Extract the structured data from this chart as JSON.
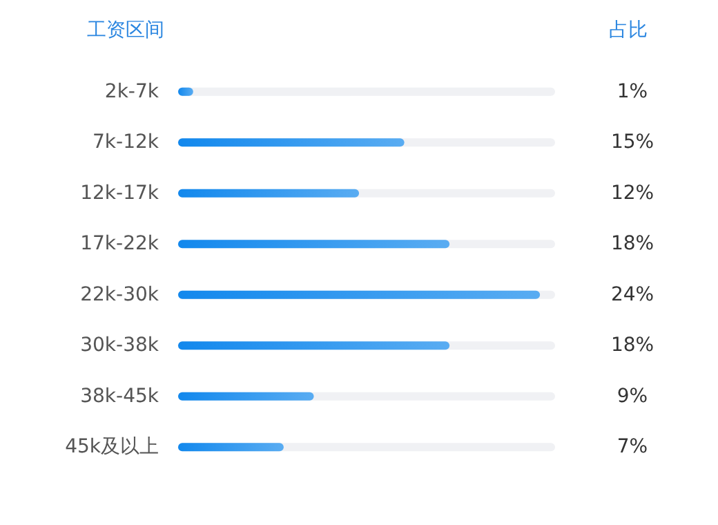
{
  "chart_data": {
    "type": "bar",
    "orientation": "horizontal",
    "ylabel": "工资区间",
    "xlabel": "占比",
    "categories": [
      "2k-7k",
      "7k-12k",
      "12k-17k",
      "17k-22k",
      "22k-30k",
      "30k-38k",
      "38k-45k",
      "45k及以上"
    ],
    "values": [
      1,
      15,
      12,
      18,
      24,
      18,
      9,
      7
    ],
    "value_labels": [
      "1%",
      "15%",
      "12%",
      "18%",
      "24%",
      "18%",
      "9%",
      "7%"
    ],
    "color": "#3a9cf0",
    "xlim": [
      0,
      25
    ],
    "tick_labels": "y"
  }
}
